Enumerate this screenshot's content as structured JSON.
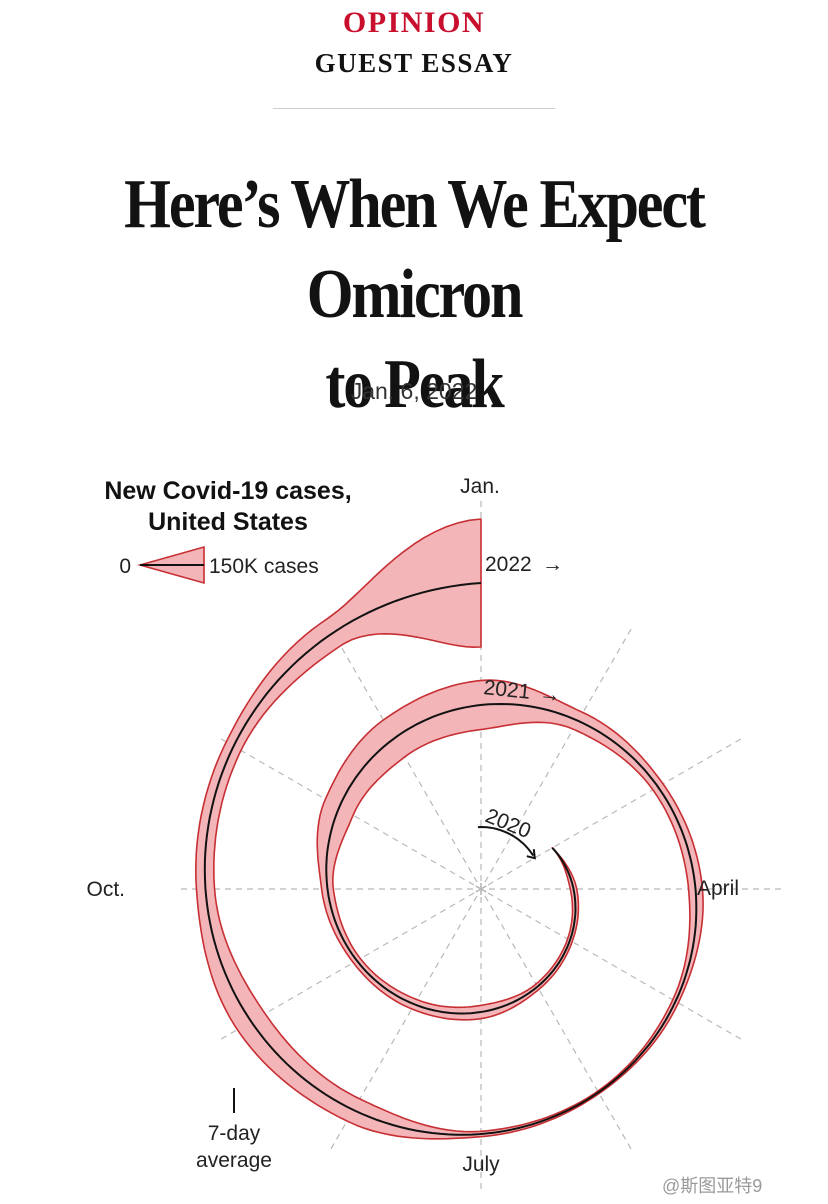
{
  "header": {
    "kicker": "OPINION",
    "section": "GUEST ESSAY"
  },
  "article": {
    "headline_line1": "Here’s When We Expect Omicron",
    "headline_line2": "to Peak",
    "date": "Jan. 6, 2022"
  },
  "colors": {
    "kicker": "#c8102e",
    "band_fill": "#f3b5b8",
    "band_stroke": "#c62f33",
    "trend_line": "#121212",
    "grid": "#b8b8b8"
  },
  "chart_data": {
    "type": "area",
    "layout": "radial spiral",
    "title_lines": [
      "New Covid-19 cases,",
      "United States"
    ],
    "legend": {
      "zero_label": "0",
      "max_label": "150K cases",
      "line_label_lines": [
        "7-day",
        "average"
      ]
    },
    "month_labels": [
      "Jan.",
      "April",
      "July",
      "Oct."
    ],
    "year_labels": [
      "2020",
      "2021",
      "2022"
    ],
    "units": "new cases per day (7-day average)",
    "x": [
      "2020-03",
      "2020-04",
      "2020-05",
      "2020-06",
      "2020-07",
      "2020-08",
      "2020-09",
      "2020-10",
      "2020-11",
      "2020-12",
      "2021-01",
      "2021-02",
      "2021-03",
      "2021-04",
      "2021-05",
      "2021-06",
      "2021-07",
      "2021-08",
      "2021-09",
      "2021-10",
      "2021-11",
      "2021-12",
      "2022-01"
    ],
    "series": [
      {
        "values": [
          1000,
          30000,
          25000,
          28000,
          62000,
          50000,
          38000,
          55000,
          150000,
          200000,
          230000,
          90000,
          55000,
          65000,
          30000,
          13000,
          25000,
          120000,
          150000,
          85000,
          80000,
          140000,
          600000
        ]
      }
    ],
    "grid": true
  },
  "watermark": "@斯图亚特9"
}
